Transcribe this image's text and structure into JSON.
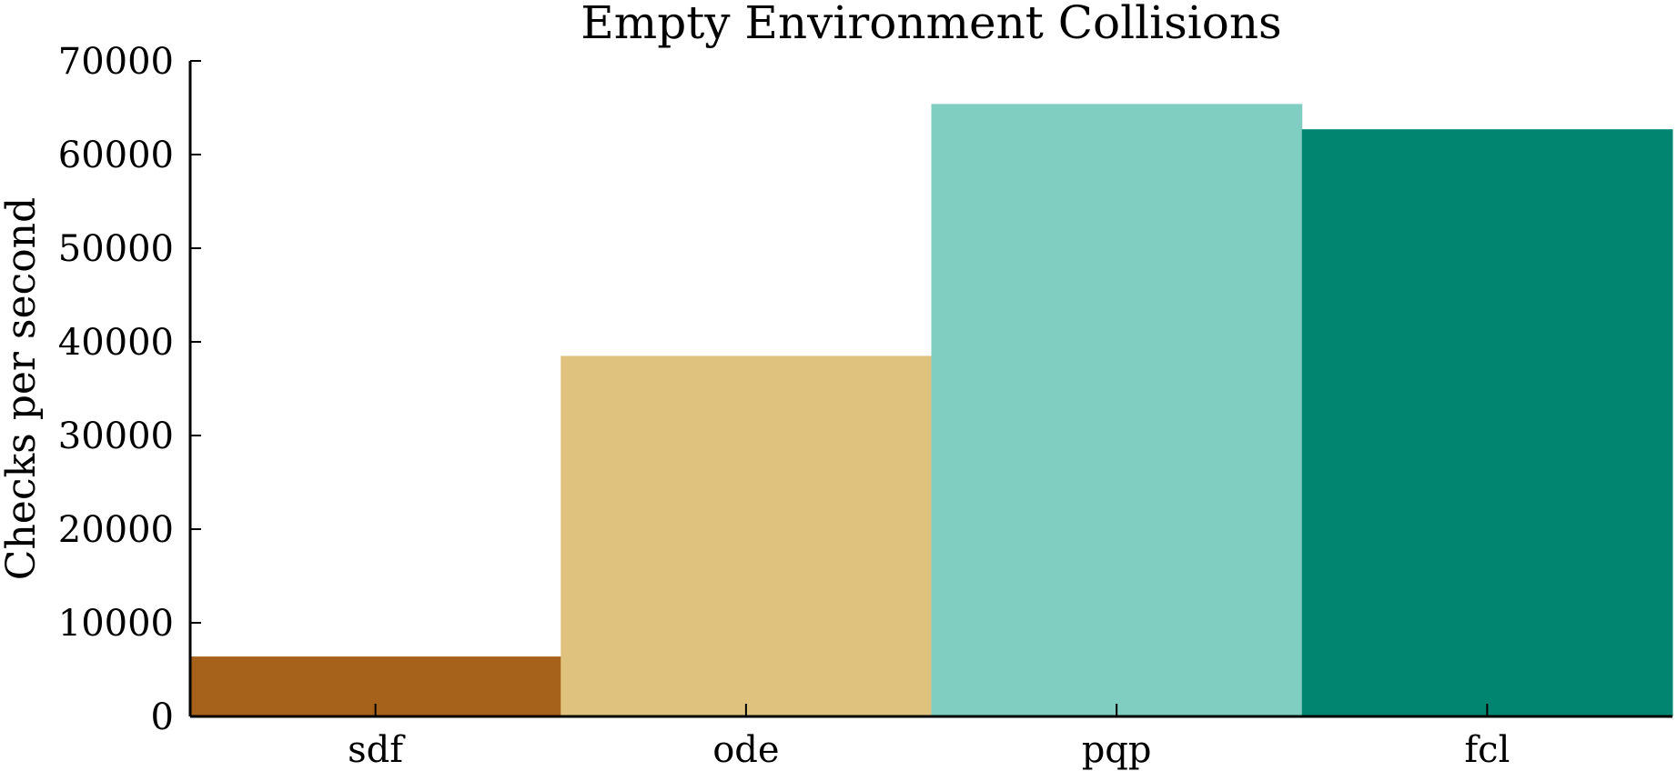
{
  "chart_data": {
    "type": "bar",
    "title": "Empty Environment Collisions",
    "xlabel": "",
    "ylabel": "Checks per second",
    "categories": [
      "sdf",
      "ode",
      "pqp",
      "fcl"
    ],
    "values": [
      6400,
      38500,
      65400,
      62700
    ],
    "colors": [
      "#a6611a",
      "#dfc27d",
      "#80cdc1",
      "#018571"
    ],
    "ylim": [
      0,
      70000
    ],
    "yticks": [
      0,
      10000,
      20000,
      30000,
      40000,
      50000,
      60000,
      70000
    ],
    "ytick_labels": [
      "0",
      "10000",
      "20000",
      "30000",
      "40000",
      "50000",
      "60000",
      "70000"
    ],
    "grid": false,
    "legend": "none"
  }
}
